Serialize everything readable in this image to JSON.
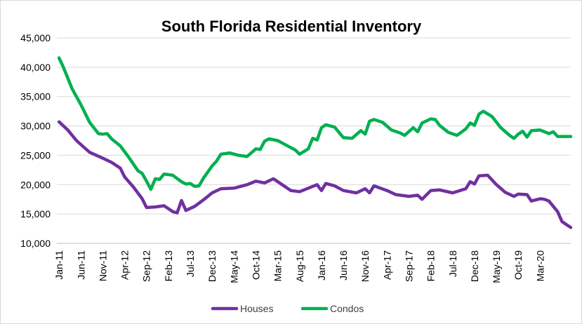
{
  "chart_data": {
    "type": "line",
    "title": "South Florida Residential Inventory",
    "xlabel": "",
    "ylabel": "",
    "ylim": [
      10000,
      45000
    ],
    "yticks": [
      "10,000",
      "15,000",
      "20,000",
      "25,000",
      "30,000",
      "35,000",
      "40,000",
      "45,000"
    ],
    "x_tick_labels": [
      "Jan-11",
      "Jun-11",
      "Nov-11",
      "Apr-12",
      "Sep-12",
      "Feb-13",
      "Jul-13",
      "Dec-13",
      "May-14",
      "Oct-14",
      "Mar-15",
      "Aug-15",
      "Jan-16",
      "Jun-16",
      "Nov-16",
      "Apr-17",
      "Sep-17",
      "Feb-18",
      "Jul-18",
      "Dec-18",
      "May-19",
      "Oct-19",
      "Mar-20"
    ],
    "x_range": [
      "Jan-11",
      "Oct-20"
    ],
    "grid": "horizontal",
    "legend": "bottom",
    "series": [
      {
        "name": "Houses",
        "color": "#7030A0",
        "points": [
          [
            "Jan-11",
            30700
          ],
          [
            "Mar-11",
            29300
          ],
          [
            "May-11",
            27500
          ],
          [
            "Aug-11",
            25500
          ],
          [
            "Nov-11",
            24500
          ],
          [
            "Jan-12",
            23800
          ],
          [
            "Mar-12",
            22800
          ],
          [
            "Apr-12",
            21300
          ],
          [
            "Jun-12",
            19600
          ],
          [
            "Aug-12",
            17600
          ],
          [
            "Sep-12",
            16100
          ],
          [
            "Nov-12",
            16200
          ],
          [
            "Jan-13",
            16400
          ],
          [
            "Mar-13",
            15400
          ],
          [
            "Apr-13",
            15200
          ],
          [
            "May-13",
            17300
          ],
          [
            "Jun-13",
            15600
          ],
          [
            "Aug-13",
            16300
          ],
          [
            "Oct-13",
            17400
          ],
          [
            "Dec-13",
            18600
          ],
          [
            "Feb-14",
            19300
          ],
          [
            "May-14",
            19400
          ],
          [
            "Aug-14",
            20000
          ],
          [
            "Oct-14",
            20600
          ],
          [
            "Dec-14",
            20300
          ],
          [
            "Feb-15",
            21000
          ],
          [
            "Apr-15",
            20000
          ],
          [
            "Jun-15",
            19000
          ],
          [
            "Aug-15",
            18800
          ],
          [
            "Oct-15",
            19400
          ],
          [
            "Dec-15",
            20000
          ],
          [
            "Jan-16",
            19000
          ],
          [
            "Feb-16",
            20200
          ],
          [
            "Apr-16",
            19800
          ],
          [
            "Jun-16",
            19000
          ],
          [
            "Sep-16",
            18600
          ],
          [
            "Nov-16",
            19300
          ],
          [
            "Dec-16",
            18600
          ],
          [
            "Jan-17",
            19800
          ],
          [
            "Apr-17",
            19000
          ],
          [
            "Jun-17",
            18300
          ],
          [
            "Sep-17",
            18000
          ],
          [
            "Nov-17",
            18200
          ],
          [
            "Dec-17",
            17500
          ],
          [
            "Feb-18",
            19000
          ],
          [
            "Apr-18",
            19100
          ],
          [
            "Jul-18",
            18600
          ],
          [
            "Oct-18",
            19300
          ],
          [
            "Nov-18",
            20500
          ],
          [
            "Dec-18",
            20100
          ],
          [
            "Jan-19",
            21500
          ],
          [
            "Mar-19",
            21600
          ],
          [
            "May-19",
            20000
          ],
          [
            "Jul-19",
            18700
          ],
          [
            "Sep-19",
            18000
          ],
          [
            "Oct-19",
            18400
          ],
          [
            "Dec-19",
            18300
          ],
          [
            "Jan-20",
            17200
          ],
          [
            "Mar-20",
            17600
          ],
          [
            "Apr-20",
            17500
          ],
          [
            "May-20",
            17200
          ],
          [
            "Jul-20",
            15400
          ],
          [
            "Aug-20",
            13700
          ],
          [
            "Oct-20",
            12700
          ]
        ]
      },
      {
        "name": "Condos",
        "color": "#00B050",
        "points": [
          [
            "Jan-11",
            41600
          ],
          [
            "Feb-11",
            40000
          ],
          [
            "Apr-11",
            36300
          ],
          [
            "Jun-11",
            33600
          ],
          [
            "Aug-11",
            30600
          ],
          [
            "Oct-11",
            28700
          ],
          [
            "Nov-11",
            28600
          ],
          [
            "Dec-11",
            28700
          ],
          [
            "Jan-12",
            27800
          ],
          [
            "Mar-12",
            26600
          ],
          [
            "May-12",
            24600
          ],
          [
            "Jul-12",
            22400
          ],
          [
            "Aug-12",
            21900
          ],
          [
            "Sep-12",
            20600
          ],
          [
            "Oct-12",
            19200
          ],
          [
            "Nov-12",
            21000
          ],
          [
            "Dec-12",
            20900
          ],
          [
            "Jan-13",
            21800
          ],
          [
            "Mar-13",
            21600
          ],
          [
            "May-13",
            20500
          ],
          [
            "Jun-13",
            20100
          ],
          [
            "Jul-13",
            20200
          ],
          [
            "Aug-13",
            19700
          ],
          [
            "Sep-13",
            19800
          ],
          [
            "Oct-13",
            21100
          ],
          [
            "Dec-13",
            23200
          ],
          [
            "Jan-14",
            24000
          ],
          [
            "Feb-14",
            25200
          ],
          [
            "Apr-14",
            25400
          ],
          [
            "Jun-14",
            25000
          ],
          [
            "Aug-14",
            24800
          ],
          [
            "Oct-14",
            26100
          ],
          [
            "Nov-14",
            26000
          ],
          [
            "Dec-14",
            27400
          ],
          [
            "Jan-15",
            27800
          ],
          [
            "Mar-15",
            27500
          ],
          [
            "May-15",
            26700
          ],
          [
            "Jul-15",
            25900
          ],
          [
            "Aug-15",
            25200
          ],
          [
            "Oct-15",
            26100
          ],
          [
            "Nov-15",
            27900
          ],
          [
            "Dec-15",
            27600
          ],
          [
            "Jan-16",
            29700
          ],
          [
            "Feb-16",
            30200
          ],
          [
            "Apr-16",
            29800
          ],
          [
            "Jun-16",
            28000
          ],
          [
            "Aug-16",
            27900
          ],
          [
            "Oct-16",
            29200
          ],
          [
            "Nov-16",
            28600
          ],
          [
            "Dec-16",
            30800
          ],
          [
            "Jan-17",
            31100
          ],
          [
            "Mar-17",
            30600
          ],
          [
            "May-17",
            29300
          ],
          [
            "Jul-17",
            28800
          ],
          [
            "Aug-17",
            28400
          ],
          [
            "Oct-17",
            29700
          ],
          [
            "Nov-17",
            29000
          ],
          [
            "Dec-17",
            30500
          ],
          [
            "Feb-18",
            31200
          ],
          [
            "Mar-18",
            31100
          ],
          [
            "Apr-18",
            30100
          ],
          [
            "Jun-18",
            28900
          ],
          [
            "Aug-18",
            28400
          ],
          [
            "Oct-18",
            29500
          ],
          [
            "Nov-18",
            30500
          ],
          [
            "Dec-18",
            30100
          ],
          [
            "Jan-19",
            32000
          ],
          [
            "Feb-19",
            32500
          ],
          [
            "Apr-19",
            31600
          ],
          [
            "Jun-19",
            29700
          ],
          [
            "Aug-19",
            28400
          ],
          [
            "Sep-19",
            27900
          ],
          [
            "Oct-19",
            28600
          ],
          [
            "Nov-19",
            29100
          ],
          [
            "Dec-19",
            28100
          ],
          [
            "Jan-20",
            29200
          ],
          [
            "Mar-20",
            29300
          ],
          [
            "May-20",
            28700
          ],
          [
            "Jun-20",
            29000
          ],
          [
            "Jul-20",
            28200
          ],
          [
            "Oct-20",
            28200
          ]
        ]
      }
    ]
  }
}
